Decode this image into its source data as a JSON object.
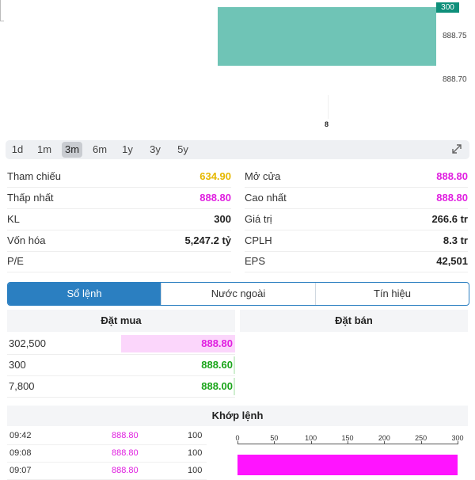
{
  "chart": {
    "badge": "300",
    "y_ticks": [
      "888.75",
      "888.70"
    ],
    "x_tick": "8"
  },
  "ranges": [
    "1d",
    "1m",
    "3m",
    "6m",
    "1y",
    "3y",
    "5y"
  ],
  "active_range": "3m",
  "stats_left": [
    {
      "label": "Tham chiếu",
      "value": "634.90",
      "color": "yellow"
    },
    {
      "label": "Thấp nhất",
      "value": "888.80",
      "color": "magenta"
    },
    {
      "label": "KL",
      "value": "300",
      "color": ""
    },
    {
      "label": "Vốn hóa",
      "value": "5,247.2 tỷ",
      "color": ""
    },
    {
      "label": "P/E",
      "value": "",
      "color": ""
    }
  ],
  "stats_right": [
    {
      "label": "Mở cửa",
      "value": "888.80",
      "color": "magenta"
    },
    {
      "label": "Cao nhất",
      "value": "888.80",
      "color": "magenta"
    },
    {
      "label": "Giá trị",
      "value": "266.6 tr",
      "color": ""
    },
    {
      "label": "CPLH",
      "value": "8.3 tr",
      "color": ""
    },
    {
      "label": "EPS",
      "value": "42,501",
      "color": ""
    }
  ],
  "tabs": [
    "Sổ lệnh",
    "Nước ngoài",
    "Tín hiệu"
  ],
  "order_book": {
    "buy_header": "Đặt mua",
    "sell_header": "Đặt bán",
    "buy_rows": [
      {
        "volume": "302,500",
        "price": "888.80",
        "color": "magenta",
        "fill": 0.49
      },
      {
        "volume": "300",
        "price": "888.60",
        "color": "green",
        "fill": 0.0
      },
      {
        "volume": "7,800",
        "price": "888.00",
        "color": "green",
        "fill": 0.0
      }
    ]
  },
  "matched": {
    "header": "Khớp lệnh",
    "rows": [
      {
        "time": "09:42",
        "price": "888.80",
        "volume": "100"
      },
      {
        "time": "09:08",
        "price": "888.80",
        "volume": "100"
      },
      {
        "time": "09:07",
        "price": "888.80",
        "volume": "100"
      }
    ],
    "volume_chart": {
      "ticks": [
        "0",
        "50",
        "100",
        "150",
        "200",
        "250",
        "300"
      ],
      "max": 300,
      "value": 300
    }
  },
  "colors": {
    "accent": "#2b7fc1",
    "magenta": "#e020e0",
    "green": "#1aa51a",
    "yellow": "#e6b800",
    "bar_teal": "#6fc4b6"
  }
}
